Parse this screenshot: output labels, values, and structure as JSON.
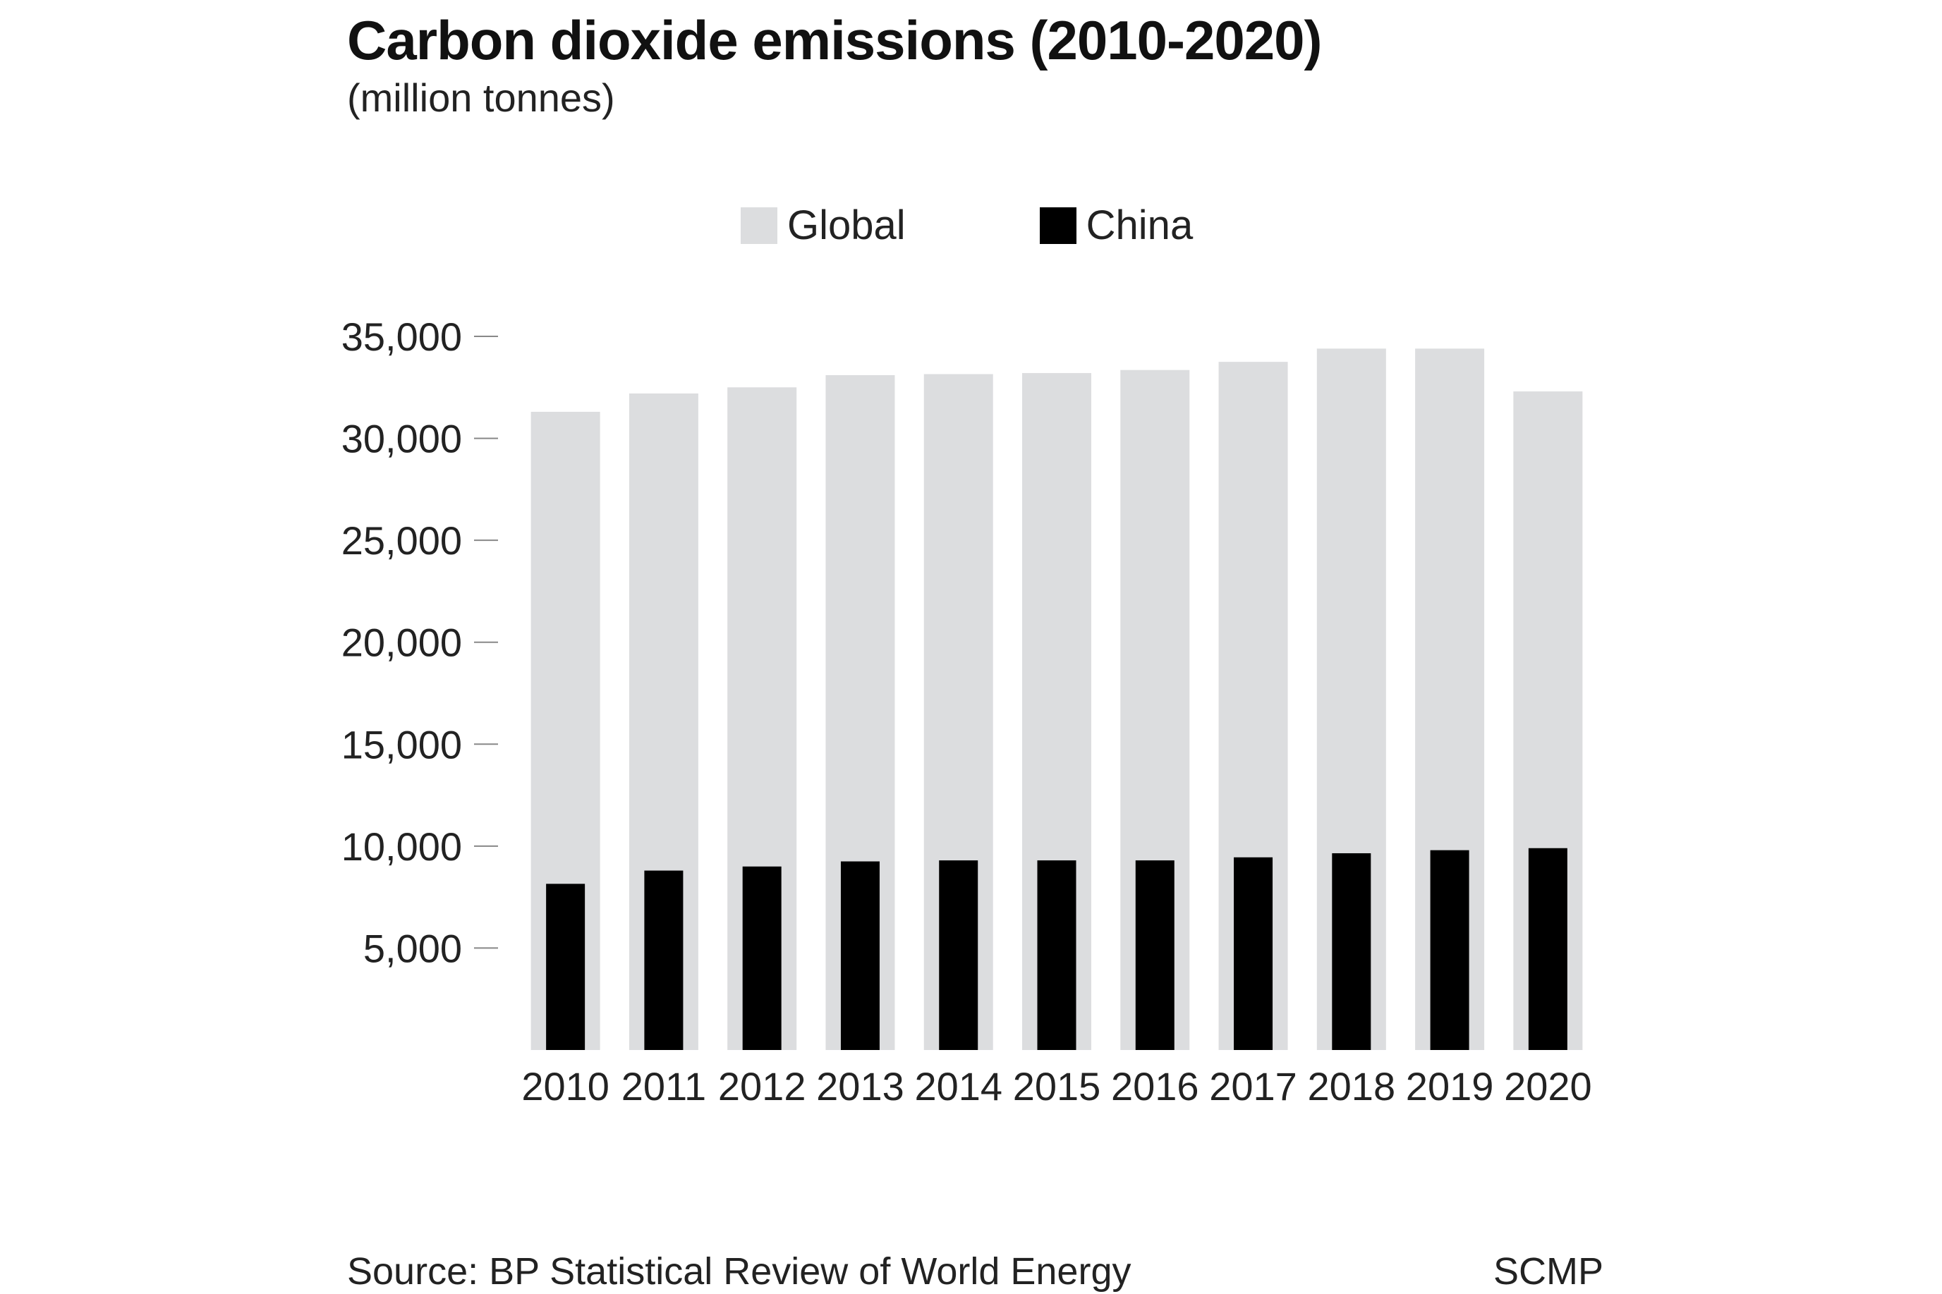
{
  "chart_data": {
    "type": "bar",
    "title": "Carbon dioxide emissions (2010-2020)",
    "subtitle": "(million tonnes)",
    "xlabel": "",
    "ylabel": "",
    "categories": [
      "2010",
      "2011",
      "2012",
      "2013",
      "2014",
      "2015",
      "2016",
      "2017",
      "2018",
      "2019",
      "2020"
    ],
    "series": [
      {
        "name": "Global",
        "color": "#dcdddf",
        "values": [
          31300,
          32200,
          32500,
          33100,
          33150,
          33200,
          33350,
          33750,
          34400,
          34400,
          32300
        ]
      },
      {
        "name": "China",
        "color": "#000000",
        "values": [
          8150,
          8800,
          9000,
          9250,
          9300,
          9300,
          9300,
          9450,
          9650,
          9800,
          9900
        ]
      }
    ],
    "yticks": [
      5000,
      10000,
      15000,
      20000,
      25000,
      30000,
      35000
    ],
    "ytick_labels": [
      "5,000",
      "10,000",
      "15,000",
      "20,000",
      "25,000",
      "30,000",
      "35,000"
    ],
    "ylim": [
      0,
      35000
    ],
    "grid": false,
    "legend": "top-center"
  },
  "footer": {
    "source": "Source: BP Statistical Review of World Energy",
    "credit": "SCMP"
  }
}
